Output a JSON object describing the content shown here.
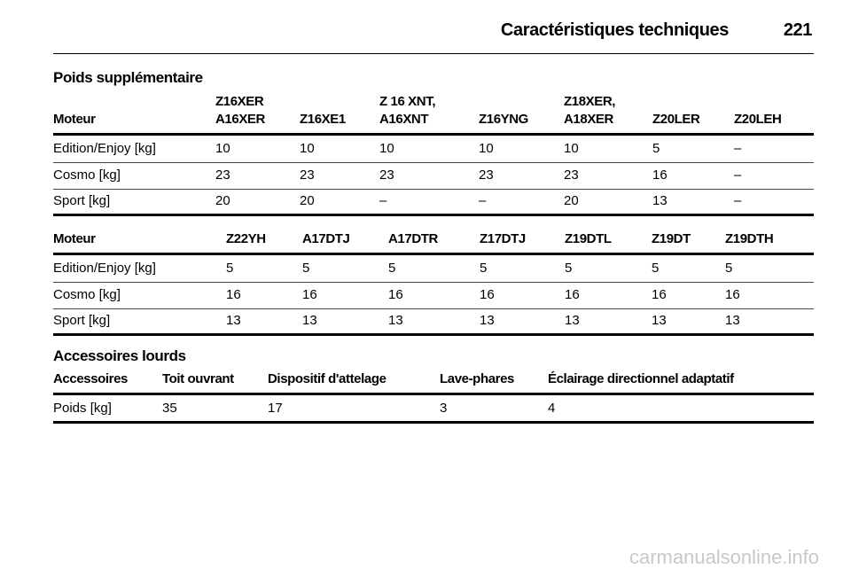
{
  "header": {
    "title": "Caractéristiques techniques",
    "page": "221"
  },
  "sections": [
    {
      "title": "Poids supplémentaire"
    },
    {
      "title": "Accessoires lourds"
    }
  ],
  "tables": [
    {
      "header": [
        [
          "Moteur"
        ],
        [
          "Z16XER",
          "A16XER"
        ],
        [
          "Z16XE1"
        ],
        [
          "Z 16 XNT,",
          "A16XNT"
        ],
        [
          "Z16YNG"
        ],
        [
          "Z18XER,",
          "A18XER"
        ],
        [
          "Z20LER"
        ],
        [
          "Z20LEH"
        ]
      ],
      "rows": [
        [
          "Edition/Enjoy [kg]",
          10,
          10,
          10,
          10,
          10,
          5,
          "–"
        ],
        [
          "Cosmo [kg]",
          23,
          23,
          23,
          23,
          23,
          16,
          "–"
        ],
        [
          "Sport [kg]",
          20,
          20,
          "–",
          "–",
          20,
          13,
          "–"
        ]
      ]
    },
    {
      "header": [
        [
          "Moteur"
        ],
        [
          "Z22YH"
        ],
        [
          "A17DTJ"
        ],
        [
          "A17DTR"
        ],
        [
          "Z17DTJ"
        ],
        [
          "Z19DTL"
        ],
        [
          "Z19DT"
        ],
        [
          "Z19DTH"
        ]
      ],
      "rows": [
        [
          "Edition/Enjoy [kg]",
          5,
          5,
          5,
          5,
          5,
          5,
          5
        ],
        [
          "Cosmo [kg]",
          16,
          16,
          16,
          16,
          16,
          16,
          16
        ],
        [
          "Sport [kg]",
          13,
          13,
          13,
          13,
          13,
          13,
          13
        ]
      ]
    },
    {
      "header": [
        [
          "Accessoires"
        ],
        [
          "Toit ouvrant"
        ],
        [
          "Dispositif d'attelage"
        ],
        [
          "Lave-phares"
        ],
        [
          "Éclairage directionnel adaptatif"
        ]
      ],
      "rows": [
        [
          "Poids [kg]",
          35,
          17,
          3,
          4
        ]
      ]
    }
  ],
  "watermark": "carmanualsonline.info"
}
